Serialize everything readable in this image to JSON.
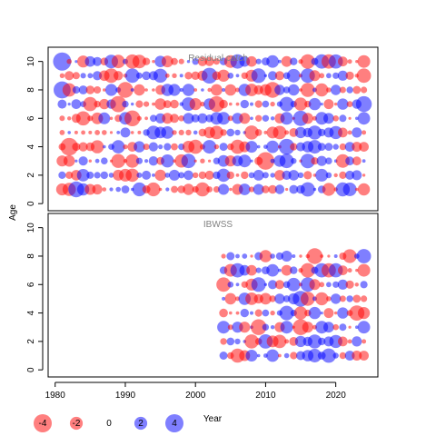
{
  "chart_data": {
    "type": "scatter",
    "subtype": "bubble",
    "xlabel": "Year",
    "ylabel": "Age",
    "xlim": [
      1979,
      2026
    ],
    "x_ticks": [
      1980,
      1990,
      2000,
      2010,
      2020
    ],
    "y_ticks": [
      0,
      2,
      4,
      6,
      8,
      10
    ],
    "colors": {
      "positive": "#0000ff",
      "negative": "#ff0000",
      "frame": "#000000",
      "panel_title": "#808080"
    },
    "legend": {
      "placement": "bottom-left",
      "entries": [
        {
          "label": "-4",
          "value": -4
        },
        {
          "label": "-2",
          "value": -2
        },
        {
          "label": "0",
          "value": 0
        },
        {
          "label": "2",
          "value": 2
        },
        {
          "label": "4",
          "value": 4
        }
      ]
    },
    "panels": [
      {
        "title": "Residual catch",
        "ylim": [
          -0.5,
          11
        ],
        "years": [
          1981,
          2024
        ],
        "ages": [
          1,
          10
        ],
        "highlights": [
          {
            "year": 1981,
            "age": 10,
            "value": 4.0
          },
          {
            "year": 1981,
            "age": 8,
            "value": 3.5
          },
          {
            "year": 1982,
            "age": 4,
            "value": -3.8
          },
          {
            "year": 1983,
            "age": 1,
            "value": 3.0
          },
          {
            "year": 1989,
            "age": 7,
            "value": -3.2
          },
          {
            "year": 1990,
            "age": 8,
            "value": -3.0
          },
          {
            "year": 1991,
            "age": 6,
            "value": -3.0
          },
          {
            "year": 2002,
            "age": 9,
            "value": 3.0
          },
          {
            "year": 2003,
            "age": 7,
            "value": -3.0
          },
          {
            "year": 2010,
            "age": 3,
            "value": -3.8
          },
          {
            "year": 2011,
            "age": 8,
            "value": -3.0
          },
          {
            "year": 2013,
            "age": 4,
            "value": 3.0
          },
          {
            "year": 2015,
            "age": 6,
            "value": 2.8
          },
          {
            "year": 2024,
            "age": 7,
            "value": 3.0
          },
          {
            "year": 2024,
            "age": 9,
            "value": -2.5
          }
        ]
      },
      {
        "title": "IBWSS",
        "ylim": [
          -0.5,
          11
        ],
        "years": [
          2004,
          2024
        ],
        "ages": [
          1,
          8
        ],
        "highlights": [
          {
            "year": 2004,
            "age": 6,
            "value": -2.5
          },
          {
            "year": 2009,
            "age": 3,
            "value": -3.0
          },
          {
            "year": 2010,
            "age": 2,
            "value": 2.5
          },
          {
            "year": 2015,
            "age": 3,
            "value": -3.0
          },
          {
            "year": 2015,
            "age": 5,
            "value": 3.0
          },
          {
            "year": 2017,
            "age": 8,
            "value": -3.0
          },
          {
            "year": 2019,
            "age": 1,
            "value": 2.5
          },
          {
            "year": 2023,
            "age": 4,
            "value": -2.8
          },
          {
            "year": 2024,
            "age": 8,
            "value": 2.5
          }
        ]
      }
    ]
  }
}
